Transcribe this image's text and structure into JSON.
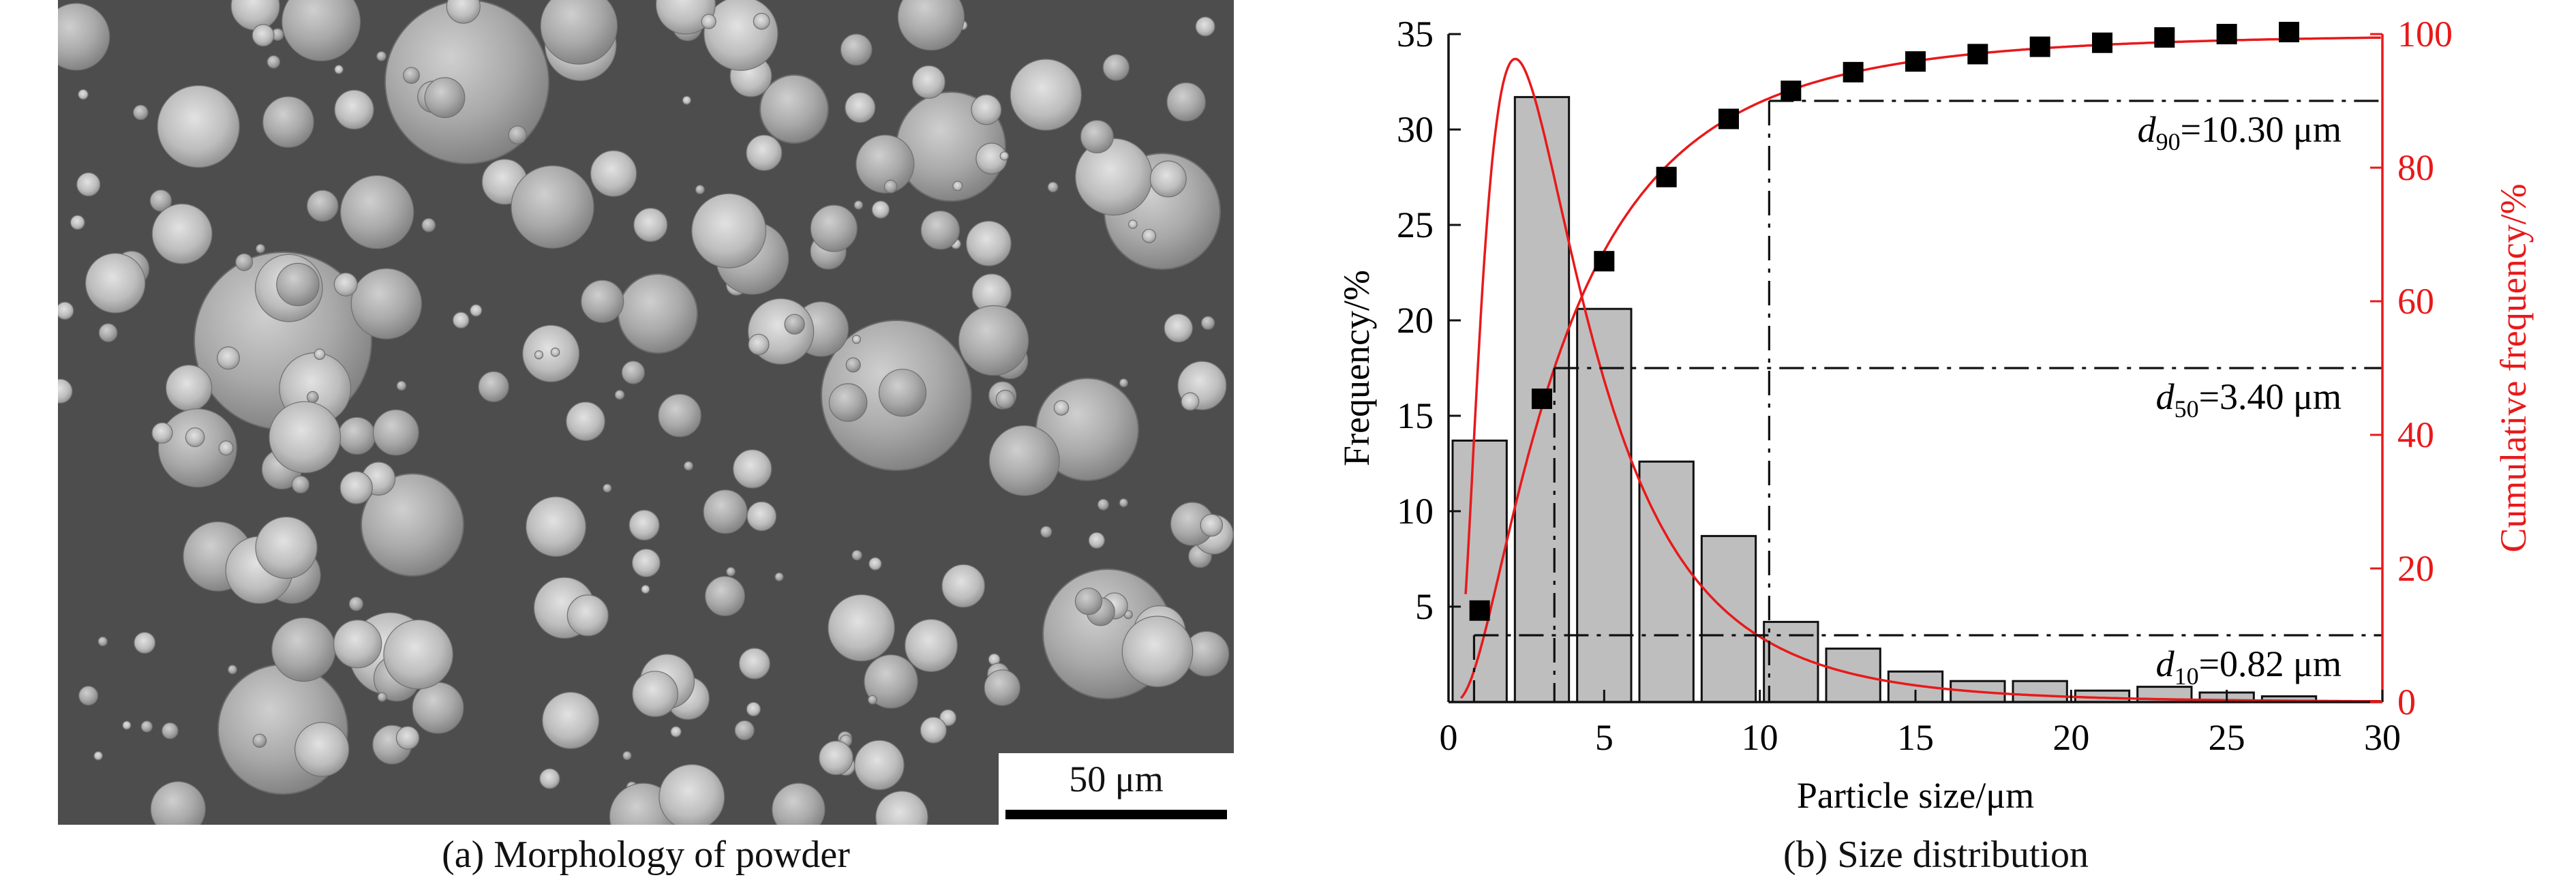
{
  "panel_a": {
    "caption": "(a) Morphology of powder",
    "scale_bar_label": "50 μm"
  },
  "panel_b": {
    "caption": "(b) Size distribution"
  },
  "chart_data": {
    "type": "bar",
    "xlabel": "Particle size/μm",
    "ylabel": "Frequency/%",
    "y2label": "Cumulative frequency/%",
    "xlim": [
      0,
      30
    ],
    "ylim": [
      0,
      35
    ],
    "y2lim": [
      0,
      100
    ],
    "xticks": [
      0,
      5,
      10,
      15,
      20,
      25,
      30
    ],
    "yticks": [
      5,
      10,
      15,
      20,
      25,
      30,
      35
    ],
    "y2ticks": [
      0,
      20,
      40,
      60,
      80,
      100
    ],
    "grid": false,
    "bar_color": "#bebebe",
    "cumulative_color": "#e8191a",
    "bins": [
      {
        "center": 1,
        "value": 13.7
      },
      {
        "center": 3,
        "value": 31.7
      },
      {
        "center": 5,
        "value": 20.6
      },
      {
        "center": 7,
        "value": 12.6
      },
      {
        "center": 9,
        "value": 8.7
      },
      {
        "center": 11,
        "value": 4.2
      },
      {
        "center": 13,
        "value": 2.8
      },
      {
        "center": 15,
        "value": 1.6
      },
      {
        "center": 17,
        "value": 1.1
      },
      {
        "center": 19,
        "value": 1.1
      },
      {
        "center": 21,
        "value": 0.6
      },
      {
        "center": 23,
        "value": 0.8
      },
      {
        "center": 25,
        "value": 0.5
      },
      {
        "center": 27,
        "value": 0.3
      }
    ],
    "cumulative_points": {
      "x": [
        1,
        3,
        5,
        7,
        9,
        11,
        13,
        15,
        17,
        19,
        21,
        23,
        25,
        27
      ],
      "y": [
        13.7,
        45.4,
        66.0,
        78.6,
        87.3,
        91.5,
        94.3,
        95.9,
        97.0,
        98.1,
        98.7,
        99.5,
        100.0,
        100.3
      ]
    },
    "annotations": [
      {
        "var": "d",
        "sub": "90",
        "text": "=10.30 μm",
        "x": 10.3,
        "cum": 90
      },
      {
        "var": "d",
        "sub": "50",
        "text": "=3.40 μm",
        "x": 3.4,
        "cum": 50
      },
      {
        "var": "d",
        "sub": "10",
        "text": "=0.82 μm",
        "x": 0.82,
        "cum": 10
      }
    ]
  }
}
